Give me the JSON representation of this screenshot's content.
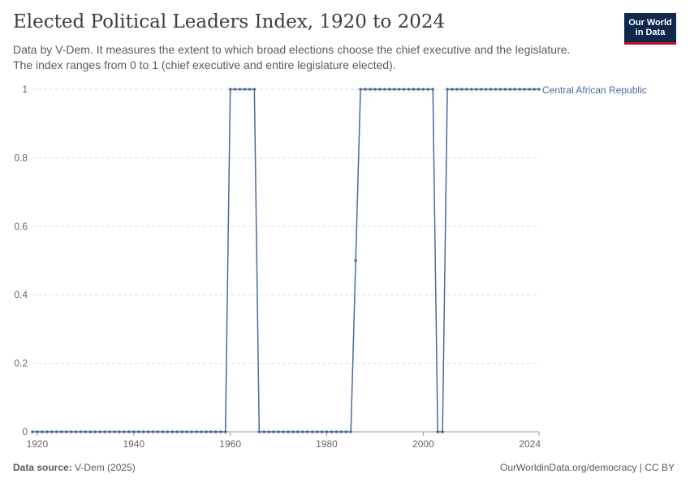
{
  "header": {
    "title": "Elected Political Leaders Index, 1920 to 2024",
    "subtitle_line1": "Data by V-Dem. It measures the extent to which broad elections choose the chief executive and the legislature.",
    "subtitle_line2": "The index ranges from 0 to 1 (chief executive and entire legislature elected).",
    "logo_line1": "Our World",
    "logo_line2": "in Data"
  },
  "footer": {
    "source_label": "Data source:",
    "source_value": "V-Dem (2025)",
    "url": "OurWorldinData.org/democracy | CC BY"
  },
  "chart_data": {
    "type": "line",
    "title": "Elected Political Leaders Index, 1920 to 2024",
    "xlim": [
      1920,
      2024
    ],
    "ylim": [
      0,
      1
    ],
    "x_ticks": [
      "1920",
      "1940",
      "1960",
      "1980",
      "2000",
      "2024"
    ],
    "y_ticks": [
      "0",
      "0.2",
      "0.4",
      "0.6",
      "0.8",
      "1"
    ],
    "grid": "horizontal dashed",
    "legend_placement": "right end of line",
    "colors": {
      "series": "#4c6a9c",
      "grid": "#dddddd",
      "axis": "#999999"
    },
    "series": [
      {
        "name": "Central African Republic",
        "points": [
          [
            1919,
            0
          ],
          [
            1920,
            0
          ],
          [
            1921,
            0
          ],
          [
            1922,
            0
          ],
          [
            1923,
            0
          ],
          [
            1924,
            0
          ],
          [
            1925,
            0
          ],
          [
            1926,
            0
          ],
          [
            1927,
            0
          ],
          [
            1928,
            0
          ],
          [
            1929,
            0
          ],
          [
            1930,
            0
          ],
          [
            1931,
            0
          ],
          [
            1932,
            0
          ],
          [
            1933,
            0
          ],
          [
            1934,
            0
          ],
          [
            1935,
            0
          ],
          [
            1936,
            0
          ],
          [
            1937,
            0
          ],
          [
            1938,
            0
          ],
          [
            1939,
            0
          ],
          [
            1940,
            0
          ],
          [
            1941,
            0
          ],
          [
            1942,
            0
          ],
          [
            1943,
            0
          ],
          [
            1944,
            0
          ],
          [
            1945,
            0
          ],
          [
            1946,
            0
          ],
          [
            1947,
            0
          ],
          [
            1948,
            0
          ],
          [
            1949,
            0
          ],
          [
            1950,
            0
          ],
          [
            1951,
            0
          ],
          [
            1952,
            0
          ],
          [
            1953,
            0
          ],
          [
            1954,
            0
          ],
          [
            1955,
            0
          ],
          [
            1956,
            0
          ],
          [
            1957,
            0
          ],
          [
            1958,
            0
          ],
          [
            1959,
            0
          ],
          [
            1960,
            1
          ],
          [
            1961,
            1
          ],
          [
            1962,
            1
          ],
          [
            1963,
            1
          ],
          [
            1964,
            1
          ],
          [
            1965,
            1
          ],
          [
            1966,
            0
          ],
          [
            1967,
            0
          ],
          [
            1968,
            0
          ],
          [
            1969,
            0
          ],
          [
            1970,
            0
          ],
          [
            1971,
            0
          ],
          [
            1972,
            0
          ],
          [
            1973,
            0
          ],
          [
            1974,
            0
          ],
          [
            1975,
            0
          ],
          [
            1976,
            0
          ],
          [
            1977,
            0
          ],
          [
            1978,
            0
          ],
          [
            1979,
            0
          ],
          [
            1980,
            0
          ],
          [
            1981,
            0
          ],
          [
            1982,
            0
          ],
          [
            1983,
            0
          ],
          [
            1984,
            0
          ],
          [
            1985,
            0
          ],
          [
            1986,
            0.5
          ],
          [
            1987,
            1
          ],
          [
            1988,
            1
          ],
          [
            1989,
            1
          ],
          [
            1990,
            1
          ],
          [
            1991,
            1
          ],
          [
            1992,
            1
          ],
          [
            1993,
            1
          ],
          [
            1994,
            1
          ],
          [
            1995,
            1
          ],
          [
            1996,
            1
          ],
          [
            1997,
            1
          ],
          [
            1998,
            1
          ],
          [
            1999,
            1
          ],
          [
            2000,
            1
          ],
          [
            2001,
            1
          ],
          [
            2002,
            1
          ],
          [
            2003,
            0
          ],
          [
            2004,
            0
          ],
          [
            2005,
            1
          ],
          [
            2006,
            1
          ],
          [
            2007,
            1
          ],
          [
            2008,
            1
          ],
          [
            2009,
            1
          ],
          [
            2010,
            1
          ],
          [
            2011,
            1
          ],
          [
            2012,
            1
          ],
          [
            2013,
            1
          ],
          [
            2014,
            1
          ],
          [
            2015,
            1
          ],
          [
            2016,
            1
          ],
          [
            2017,
            1
          ],
          [
            2018,
            1
          ],
          [
            2019,
            1
          ],
          [
            2020,
            1
          ],
          [
            2021,
            1
          ],
          [
            2022,
            1
          ],
          [
            2023,
            1
          ],
          [
            2024,
            1
          ]
        ]
      }
    ]
  }
}
